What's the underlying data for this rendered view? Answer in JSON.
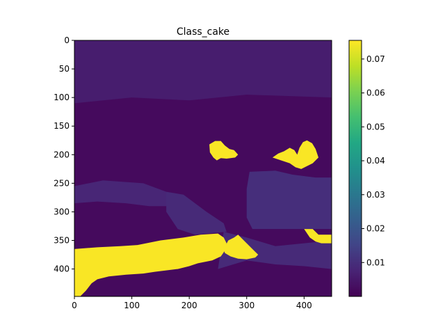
{
  "chart_data": {
    "type": "heatmap",
    "title": "Class_cake",
    "xlabel": "",
    "ylabel": "",
    "image_extent": {
      "x": [
        0,
        448
      ],
      "y": [
        0,
        448
      ]
    },
    "xticks": [
      0,
      100,
      200,
      300,
      400
    ],
    "yticks": [
      0,
      50,
      100,
      150,
      200,
      250,
      300,
      350,
      400
    ],
    "colormap": "viridis",
    "colorbar": {
      "vmin": 0.0,
      "vmax": 0.0755,
      "ticks": [
        "0.01",
        "0.02",
        "0.03",
        "0.04",
        "0.05",
        "0.06",
        "0.07"
      ],
      "tick_values": [
        0.01,
        0.02,
        0.03,
        0.04,
        0.05,
        0.06,
        0.07
      ]
    },
    "colors": {
      "background": "#440154",
      "mid_region": "#472d7b",
      "mid_region_2": "#46327e",
      "high_value": "#fde725",
      "edge": "#b5de2b"
    },
    "regions": [
      {
        "name": "background",
        "value": 0.002,
        "polygon": [
          [
            0,
            0
          ],
          [
            448,
            0
          ],
          [
            448,
            448
          ],
          [
            0,
            448
          ]
        ]
      },
      {
        "name": "upper-band",
        "value": 0.006,
        "polygon": [
          [
            0,
            0
          ],
          [
            448,
            0
          ],
          [
            448,
            100
          ],
          [
            300,
            95
          ],
          [
            200,
            105
          ],
          [
            100,
            100
          ],
          [
            0,
            110
          ]
        ]
      },
      {
        "name": "band-strip",
        "value": 0.008,
        "polygon": [
          [
            0,
            255
          ],
          [
            50,
            245
          ],
          [
            120,
            250
          ],
          [
            160,
            265
          ],
          [
            170,
            290
          ],
          [
            130,
            290
          ],
          [
            90,
            285
          ],
          [
            40,
            282
          ],
          [
            0,
            285
          ]
        ]
      },
      {
        "name": "center-left",
        "value": 0.009,
        "polygon": [
          [
            160,
            265
          ],
          [
            190,
            270
          ],
          [
            230,
            300
          ],
          [
            260,
            320
          ],
          [
            265,
            335
          ],
          [
            210,
            340
          ],
          [
            180,
            330
          ],
          [
            160,
            300
          ]
        ]
      },
      {
        "name": "right-block",
        "value": 0.01,
        "polygon": [
          [
            305,
            230
          ],
          [
            350,
            228
          ],
          [
            380,
            235
          ],
          [
            420,
            240
          ],
          [
            448,
            240
          ],
          [
            448,
            330
          ],
          [
            410,
            330
          ],
          [
            380,
            330
          ],
          [
            340,
            330
          ],
          [
            310,
            330
          ],
          [
            300,
            310
          ],
          [
            300,
            260
          ]
        ]
      },
      {
        "name": "lower-right",
        "value": 0.009,
        "polygon": [
          [
            260,
            335
          ],
          [
            300,
            345
          ],
          [
            350,
            360
          ],
          [
            400,
            355
          ],
          [
            448,
            350
          ],
          [
            448,
            400
          ],
          [
            400,
            395
          ],
          [
            350,
            392
          ],
          [
            300,
            385
          ],
          [
            250,
            400
          ]
        ]
      },
      {
        "name": "cake-top-left",
        "value": 0.075,
        "polygon": [
          [
            235,
            182
          ],
          [
            245,
            176
          ],
          [
            255,
            176
          ],
          [
            262,
            184
          ],
          [
            270,
            190
          ],
          [
            278,
            192
          ],
          [
            285,
            200
          ],
          [
            280,
            205
          ],
          [
            265,
            207
          ],
          [
            255,
            206
          ],
          [
            248,
            210
          ],
          [
            242,
            205
          ],
          [
            236,
            196
          ]
        ]
      },
      {
        "name": "cake-top-right",
        "value": 0.075,
        "polygon": [
          [
            345,
            205
          ],
          [
            355,
            198
          ],
          [
            365,
            194
          ],
          [
            375,
            188
          ],
          [
            383,
            192
          ],
          [
            388,
            200
          ],
          [
            392,
            188
          ],
          [
            398,
            178
          ],
          [
            405,
            175
          ],
          [
            414,
            180
          ],
          [
            420,
            190
          ],
          [
            425,
            205
          ],
          [
            415,
            215
          ],
          [
            405,
            220
          ],
          [
            395,
            225
          ],
          [
            385,
            222
          ],
          [
            375,
            215
          ],
          [
            360,
            210
          ]
        ]
      },
      {
        "name": "cake-right-edge",
        "value": 0.075,
        "polygon": [
          [
            400,
            330
          ],
          [
            415,
            330
          ],
          [
            425,
            340
          ],
          [
            448,
            340
          ],
          [
            448,
            355
          ],
          [
            430,
            355
          ],
          [
            420,
            352
          ],
          [
            410,
            345
          ]
        ]
      },
      {
        "name": "cake-main",
        "value": 0.075,
        "polygon": [
          [
            0,
            365
          ],
          [
            40,
            362
          ],
          [
            80,
            360
          ],
          [
            110,
            358
          ],
          [
            150,
            350
          ],
          [
            190,
            345
          ],
          [
            220,
            340
          ],
          [
            250,
            338
          ],
          [
            260,
            345
          ],
          [
            265,
            355
          ],
          [
            262,
            368
          ],
          [
            255,
            378
          ],
          [
            240,
            385
          ],
          [
            215,
            390
          ],
          [
            200,
            395
          ],
          [
            180,
            400
          ],
          [
            140,
            405
          ],
          [
            120,
            408
          ],
          [
            90,
            410
          ],
          [
            60,
            413
          ],
          [
            40,
            418
          ],
          [
            30,
            425
          ],
          [
            20,
            438
          ],
          [
            10,
            448
          ],
          [
            0,
            448
          ]
        ]
      },
      {
        "name": "cake-middle",
        "value": 0.075,
        "polygon": [
          [
            268,
            350
          ],
          [
            278,
            345
          ],
          [
            285,
            340
          ],
          [
            290,
            345
          ],
          [
            300,
            355
          ],
          [
            310,
            365
          ],
          [
            320,
            375
          ],
          [
            315,
            380
          ],
          [
            300,
            383
          ],
          [
            285,
            382
          ],
          [
            272,
            378
          ],
          [
            262,
            372
          ],
          [
            260,
            365
          ]
        ]
      }
    ]
  }
}
